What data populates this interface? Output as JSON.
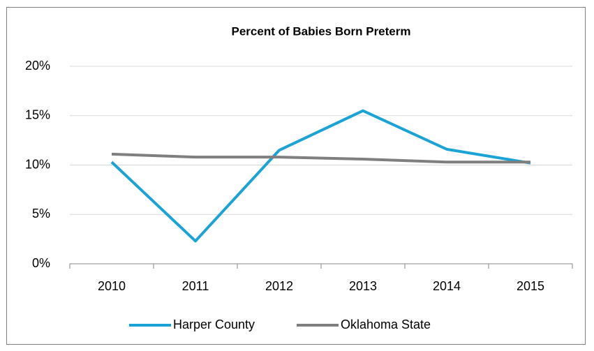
{
  "chart_data": {
    "type": "line",
    "title": "Percent of Babies Born Preterm",
    "categories": [
      "2010",
      "2011",
      "2012",
      "2013",
      "2014",
      "2015"
    ],
    "series": [
      {
        "name": "Harper County",
        "color": "#1aa3d6",
        "values": [
          10.3,
          2.3,
          11.5,
          15.5,
          11.6,
          10.2
        ]
      },
      {
        "name": "Oklahoma State",
        "color": "#7f7f7f",
        "values": [
          11.1,
          10.8,
          10.8,
          10.6,
          10.3,
          10.3
        ]
      }
    ],
    "ylim": [
      0,
      20
    ],
    "yticks": [
      {
        "value": 0,
        "label": "0%"
      },
      {
        "value": 5,
        "label": "5%"
      },
      {
        "value": 10,
        "label": "10%"
      },
      {
        "value": 15,
        "label": "15%"
      },
      {
        "value": 20,
        "label": "20%"
      }
    ],
    "grid": true,
    "legend": "bottom"
  }
}
